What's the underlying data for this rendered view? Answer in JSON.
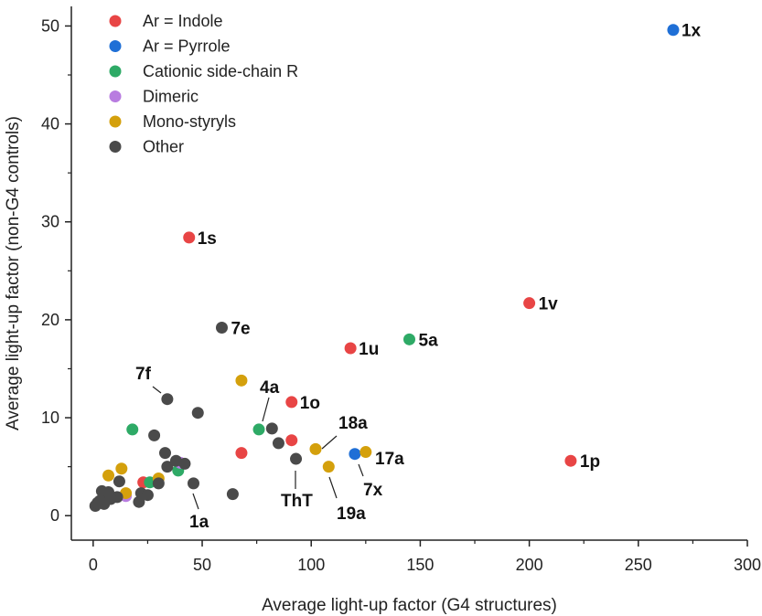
{
  "chart_data": {
    "type": "scatter",
    "title": "",
    "xlabel": "Average light-up factor (G4 structures)",
    "ylabel": "Average light-up factor (non-G4 controls)",
    "xlim": [
      -10,
      300
    ],
    "ylim": [
      -2.5,
      52
    ],
    "xticks": [
      0,
      50,
      100,
      150,
      200,
      250,
      300
    ],
    "yticks": [
      0,
      10,
      20,
      30,
      40,
      50
    ],
    "xtick_labels": [
      "0",
      "50",
      "100",
      "150",
      "200",
      "250",
      "300"
    ],
    "ytick_labels": [
      "0",
      "10",
      "20",
      "30",
      "40",
      "50"
    ],
    "legend_position": "top-left",
    "series": [
      {
        "name": "Ar = Indole",
        "color": "#e84545",
        "points": [
          {
            "x": 44,
            "y": 28.4,
            "label": "1s"
          },
          {
            "x": 200,
            "y": 21.7,
            "label": "1v"
          },
          {
            "x": 118,
            "y": 17.1,
            "label": "1u"
          },
          {
            "x": 91,
            "y": 11.6,
            "label": "1o"
          },
          {
            "x": 219,
            "y": 5.6,
            "label": "1p"
          },
          {
            "x": 68,
            "y": 6.4
          },
          {
            "x": 91,
            "y": 7.7
          },
          {
            "x": 23,
            "y": 3.4
          }
        ]
      },
      {
        "name": "Ar = Pyrrole",
        "color": "#1f6fd6",
        "points": [
          {
            "x": 266,
            "y": 49.6,
            "label": "1x"
          },
          {
            "x": 120,
            "y": 6.3
          }
        ]
      },
      {
        "name": "Cationic side-chain R",
        "color": "#2eaa66",
        "points": [
          {
            "x": 145,
            "y": 18.0,
            "label": "5a"
          },
          {
            "x": 18,
            "y": 8.8
          },
          {
            "x": 76,
            "y": 8.8
          },
          {
            "x": 26,
            "y": 3.4
          },
          {
            "x": 39,
            "y": 4.6
          }
        ]
      },
      {
        "name": "Dimeric",
        "color": "#b87ce0",
        "points": [
          {
            "x": 40,
            "y": 5.4
          },
          {
            "x": 15,
            "y": 2.0
          }
        ]
      },
      {
        "name": "Mono-styryls",
        "color": "#d4a00c",
        "points": [
          {
            "x": 68,
            "y": 13.8
          },
          {
            "x": 102,
            "y": 6.8
          },
          {
            "x": 108,
            "y": 5.0
          },
          {
            "x": 125,
            "y": 6.5
          },
          {
            "x": 13,
            "y": 4.8
          },
          {
            "x": 7,
            "y": 4.1
          },
          {
            "x": 30,
            "y": 3.8
          },
          {
            "x": 5,
            "y": 1.3
          },
          {
            "x": 15,
            "y": 2.3
          }
        ]
      },
      {
        "name": "Other",
        "color": "#4a4a4a",
        "points": [
          {
            "x": 59,
            "y": 19.2,
            "label": "7e"
          },
          {
            "x": 34,
            "y": 11.9
          },
          {
            "x": 48,
            "y": 10.5
          },
          {
            "x": 28,
            "y": 8.2
          },
          {
            "x": 82,
            "y": 8.9
          },
          {
            "x": 85,
            "y": 7.4
          },
          {
            "x": 93,
            "y": 5.8
          },
          {
            "x": 33,
            "y": 6.4
          },
          {
            "x": 34,
            "y": 5.0
          },
          {
            "x": 38,
            "y": 5.6
          },
          {
            "x": 42,
            "y": 5.3
          },
          {
            "x": 46,
            "y": 3.3
          },
          {
            "x": 64,
            "y": 2.2
          },
          {
            "x": 30,
            "y": 3.3
          },
          {
            "x": 22,
            "y": 2.3
          },
          {
            "x": 25,
            "y": 2.1
          },
          {
            "x": 21,
            "y": 1.4
          },
          {
            "x": 12,
            "y": 3.5
          },
          {
            "x": 11,
            "y": 1.9
          },
          {
            "x": 4,
            "y": 2.5
          },
          {
            "x": 6,
            "y": 2.0
          },
          {
            "x": 7,
            "y": 2.4
          },
          {
            "x": 3,
            "y": 1.5
          },
          {
            "x": 8,
            "y": 1.7
          },
          {
            "x": 5,
            "y": 1.2
          },
          {
            "x": 1,
            "y": 1.0
          },
          {
            "x": 2,
            "y": 1.3
          }
        ]
      }
    ],
    "callouts": [
      {
        "label": "7f",
        "point": {
          "x": 34,
          "y": 11.9
        }
      },
      {
        "label": "4a",
        "point": {
          "x": 79,
          "y": 9.6
        }
      },
      {
        "label": "18a",
        "point": {
          "x": 102,
          "y": 6.8
        }
      },
      {
        "label": "17a",
        "point": {
          "x": 125,
          "y": 6.5
        }
      },
      {
        "label": "7x",
        "point": {
          "x": 120,
          "y": 6.3
        }
      },
      {
        "label": "ThT",
        "point": {
          "x": 93,
          "y": 5.8
        }
      },
      {
        "label": "19a",
        "point": {
          "x": 108,
          "y": 5.0
        }
      },
      {
        "label": "1a",
        "point": {
          "x": 46,
          "y": 3.3
        }
      }
    ]
  }
}
